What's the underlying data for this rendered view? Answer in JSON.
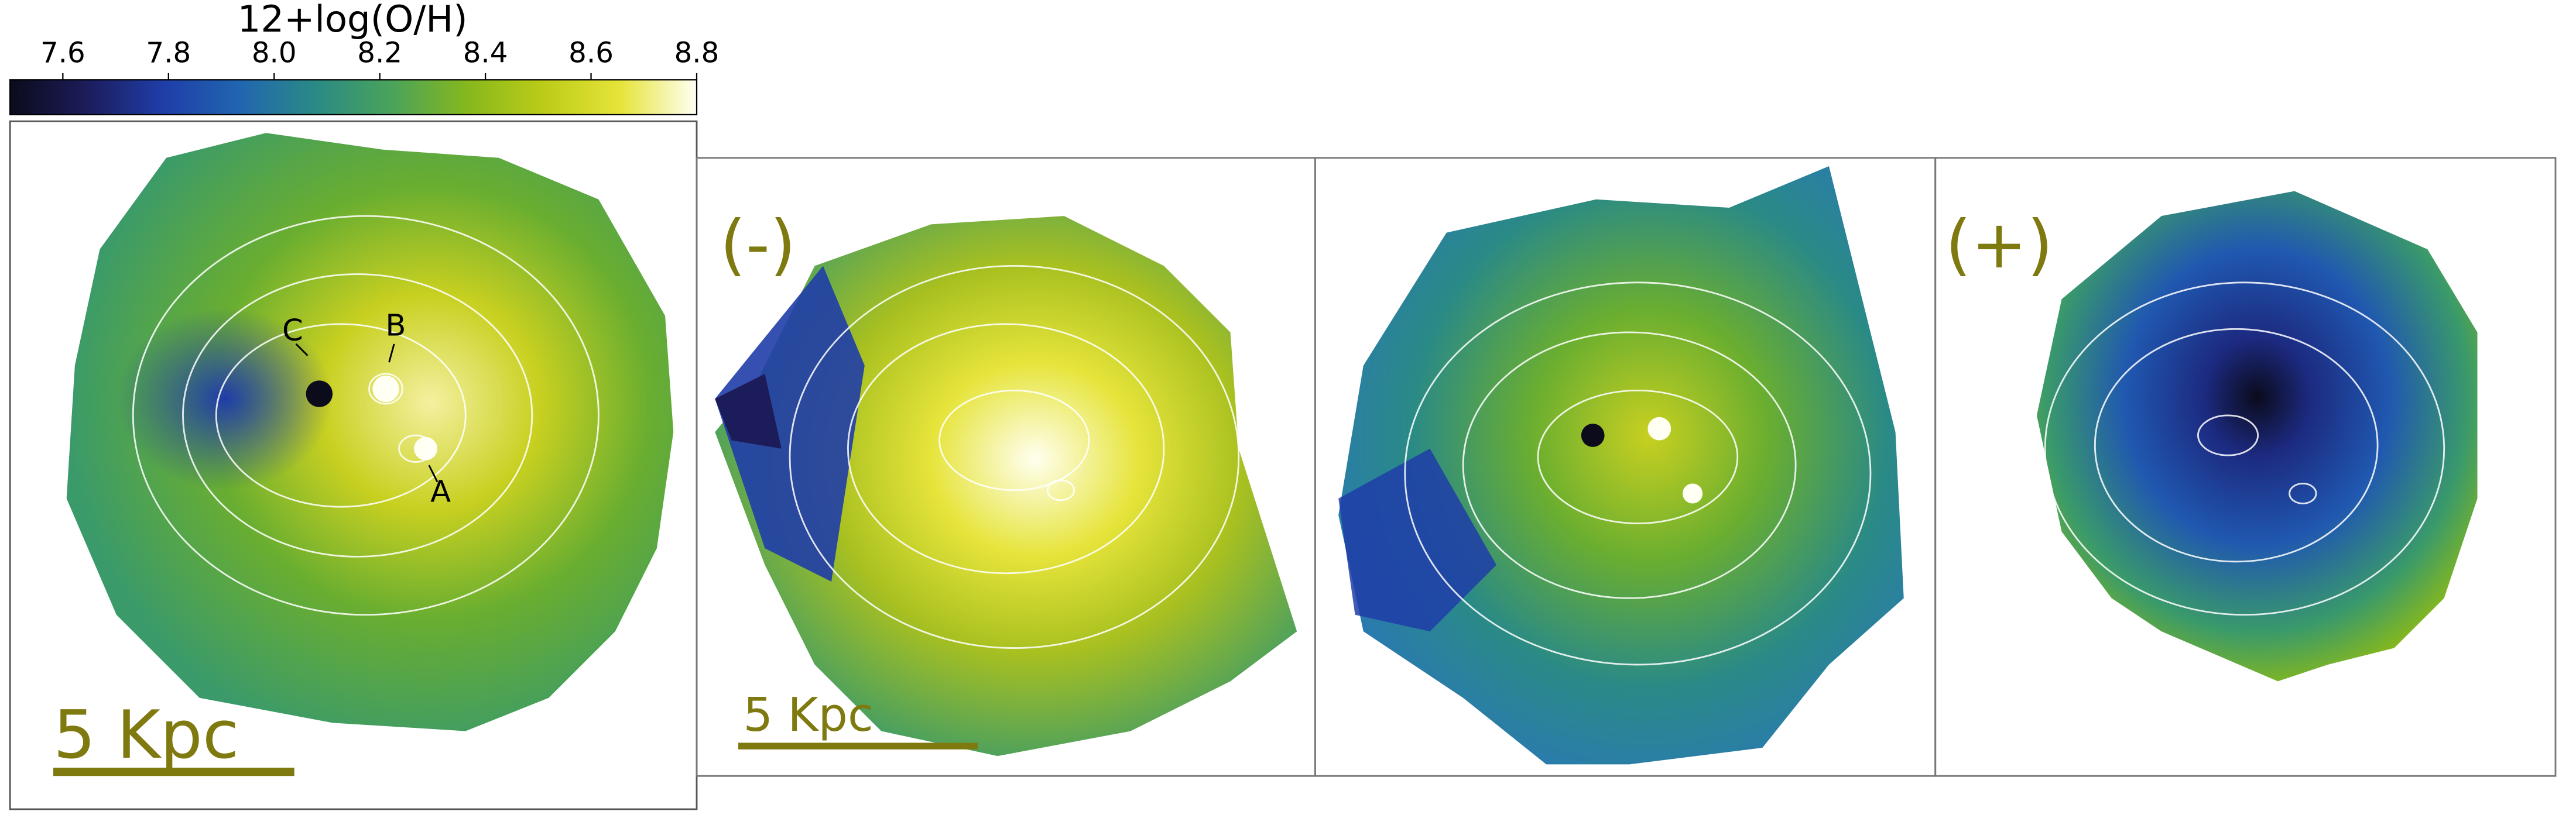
{
  "chart_data": {
    "type": "map",
    "colorbar": {
      "label": "12+log(O/H)",
      "lim": [
        7.5,
        8.8
      ],
      "ticks": [
        7.6,
        7.8,
        {
          "value": 8,
          "label": "8.0"
        },
        8.2,
        8.4,
        8.6,
        8.8
      ],
      "colormap": [
        "#0b0b1c",
        "#1c1c5a",
        "#1f3da8",
        "#2165b0",
        "#2a8a86",
        "#4aa35a",
        "#86b81c",
        "#bccc18",
        "#e6e43a",
        "#fffff4"
      ]
    },
    "panel_labels": [
      "(-)",
      "(+)"
    ],
    "scale_bars": [
      "5 Kpc",
      "5 Kpc"
    ],
    "annotations": [
      "A",
      "B",
      "C"
    ]
  }
}
